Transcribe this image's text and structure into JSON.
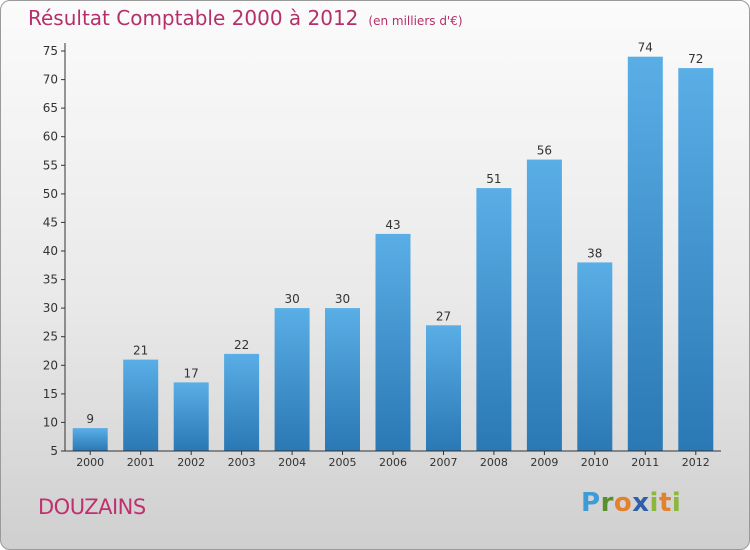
{
  "header": {
    "title": "Résultat Comptable 2000 à 2012",
    "subtitle": "(en milliers d'€)"
  },
  "footer": {
    "town": "DOUZAINS",
    "logo": "Proxiti"
  },
  "colors": {
    "title": "#b5306a",
    "bar_light": "#5aaee6",
    "bar_dark": "#2a78b4",
    "axis": "#333333"
  },
  "chart_data": {
    "type": "bar",
    "title": "Résultat Comptable 2000 à 2012",
    "subtitle": "(en milliers d'€)",
    "xlabel": "",
    "ylabel": "",
    "categories": [
      "2000",
      "2001",
      "2002",
      "2003",
      "2004",
      "2005",
      "2006",
      "2007",
      "2008",
      "2009",
      "2010",
      "2011",
      "2012"
    ],
    "values": [
      9,
      21,
      17,
      22,
      30,
      30,
      43,
      27,
      51,
      56,
      38,
      74,
      72
    ],
    "ylim": [
      5,
      75
    ],
    "yticks": [
      5,
      10,
      15,
      20,
      25,
      30,
      35,
      40,
      45,
      50,
      55,
      60,
      65,
      70,
      75
    ],
    "grid": false,
    "legend": "none",
    "data_labels": true
  }
}
